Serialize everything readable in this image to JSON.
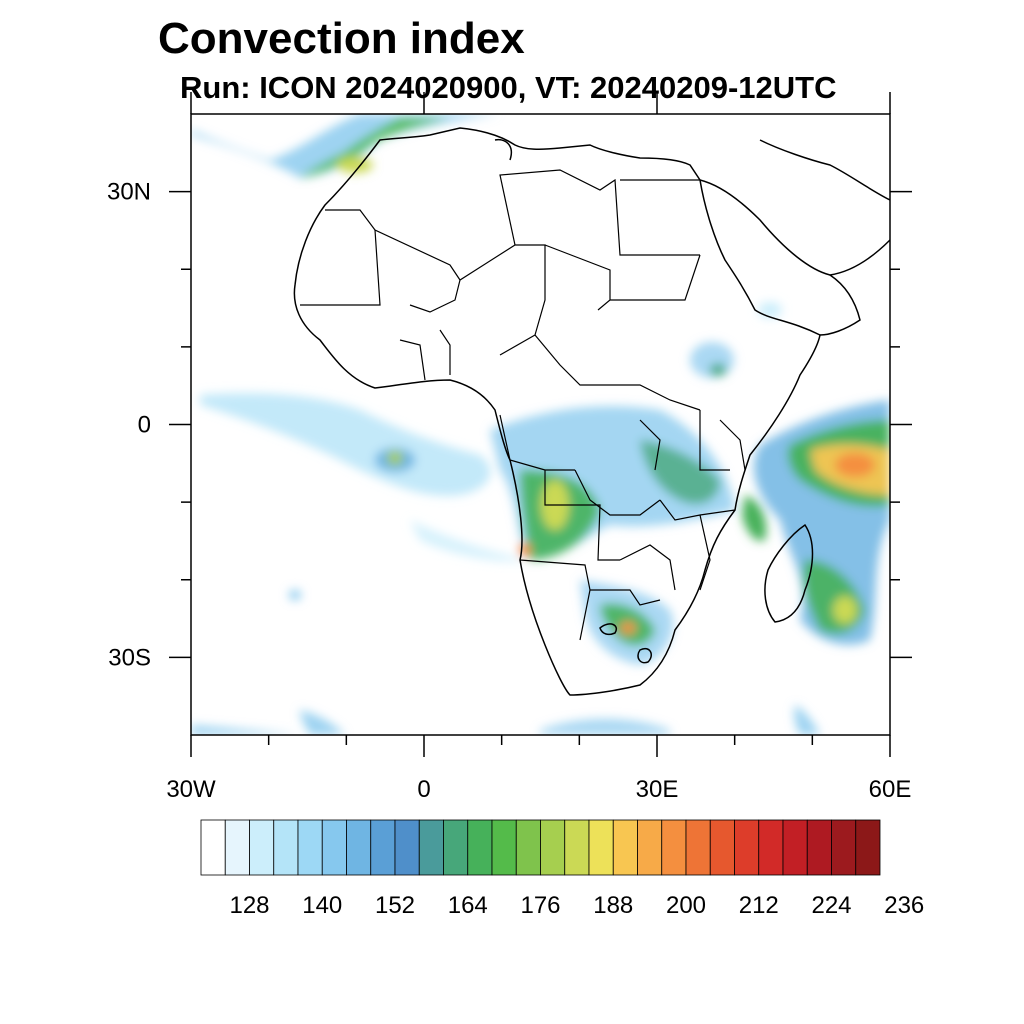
{
  "title": "Convection index",
  "subtitle": "Run: ICON 2024020900,  VT: 20240209-12UTC",
  "map": {
    "lon_range": [
      -30,
      60
    ],
    "lat_range": [
      -40,
      40
    ],
    "lon_labels": [
      {
        "lon": -30,
        "text": "30W"
      },
      {
        "lon": 0,
        "text": "0"
      },
      {
        "lon": 30,
        "text": "30E"
      },
      {
        "lon": 60,
        "text": "60E"
      }
    ],
    "lat_labels": [
      {
        "lat": 30,
        "text": "30N"
      },
      {
        "lat": 0,
        "text": "0"
      },
      {
        "lat": -30,
        "text": "30S"
      }
    ],
    "minor_lon_ticks": [
      -20,
      -10,
      10,
      20,
      40,
      50
    ],
    "minor_lat_ticks": [
      20,
      10,
      -10,
      -20
    ]
  },
  "colorbar": {
    "colors": [
      "#ffffff",
      "#e6f5fd",
      "#cceefb",
      "#b4e4f8",
      "#9dd8f5",
      "#86c8ee",
      "#6fb5e3",
      "#5a9fd6",
      "#4f8fca",
      "#4a9b9b",
      "#47a77a",
      "#46b15a",
      "#54bb4a",
      "#7fc34c",
      "#a6cf4f",
      "#cbd955",
      "#ede159",
      "#f8c651",
      "#f7aa48",
      "#f48f3f",
      "#ee7436",
      "#e6582e",
      "#dd3d2a",
      "#d22a28",
      "#c21f25",
      "#ae1a22",
      "#9c1a1e",
      "#8c1818"
    ],
    "tick_labels": [
      "128",
      "140",
      "152",
      "164",
      "176",
      "188",
      "200",
      "212",
      "224",
      "236"
    ]
  }
}
